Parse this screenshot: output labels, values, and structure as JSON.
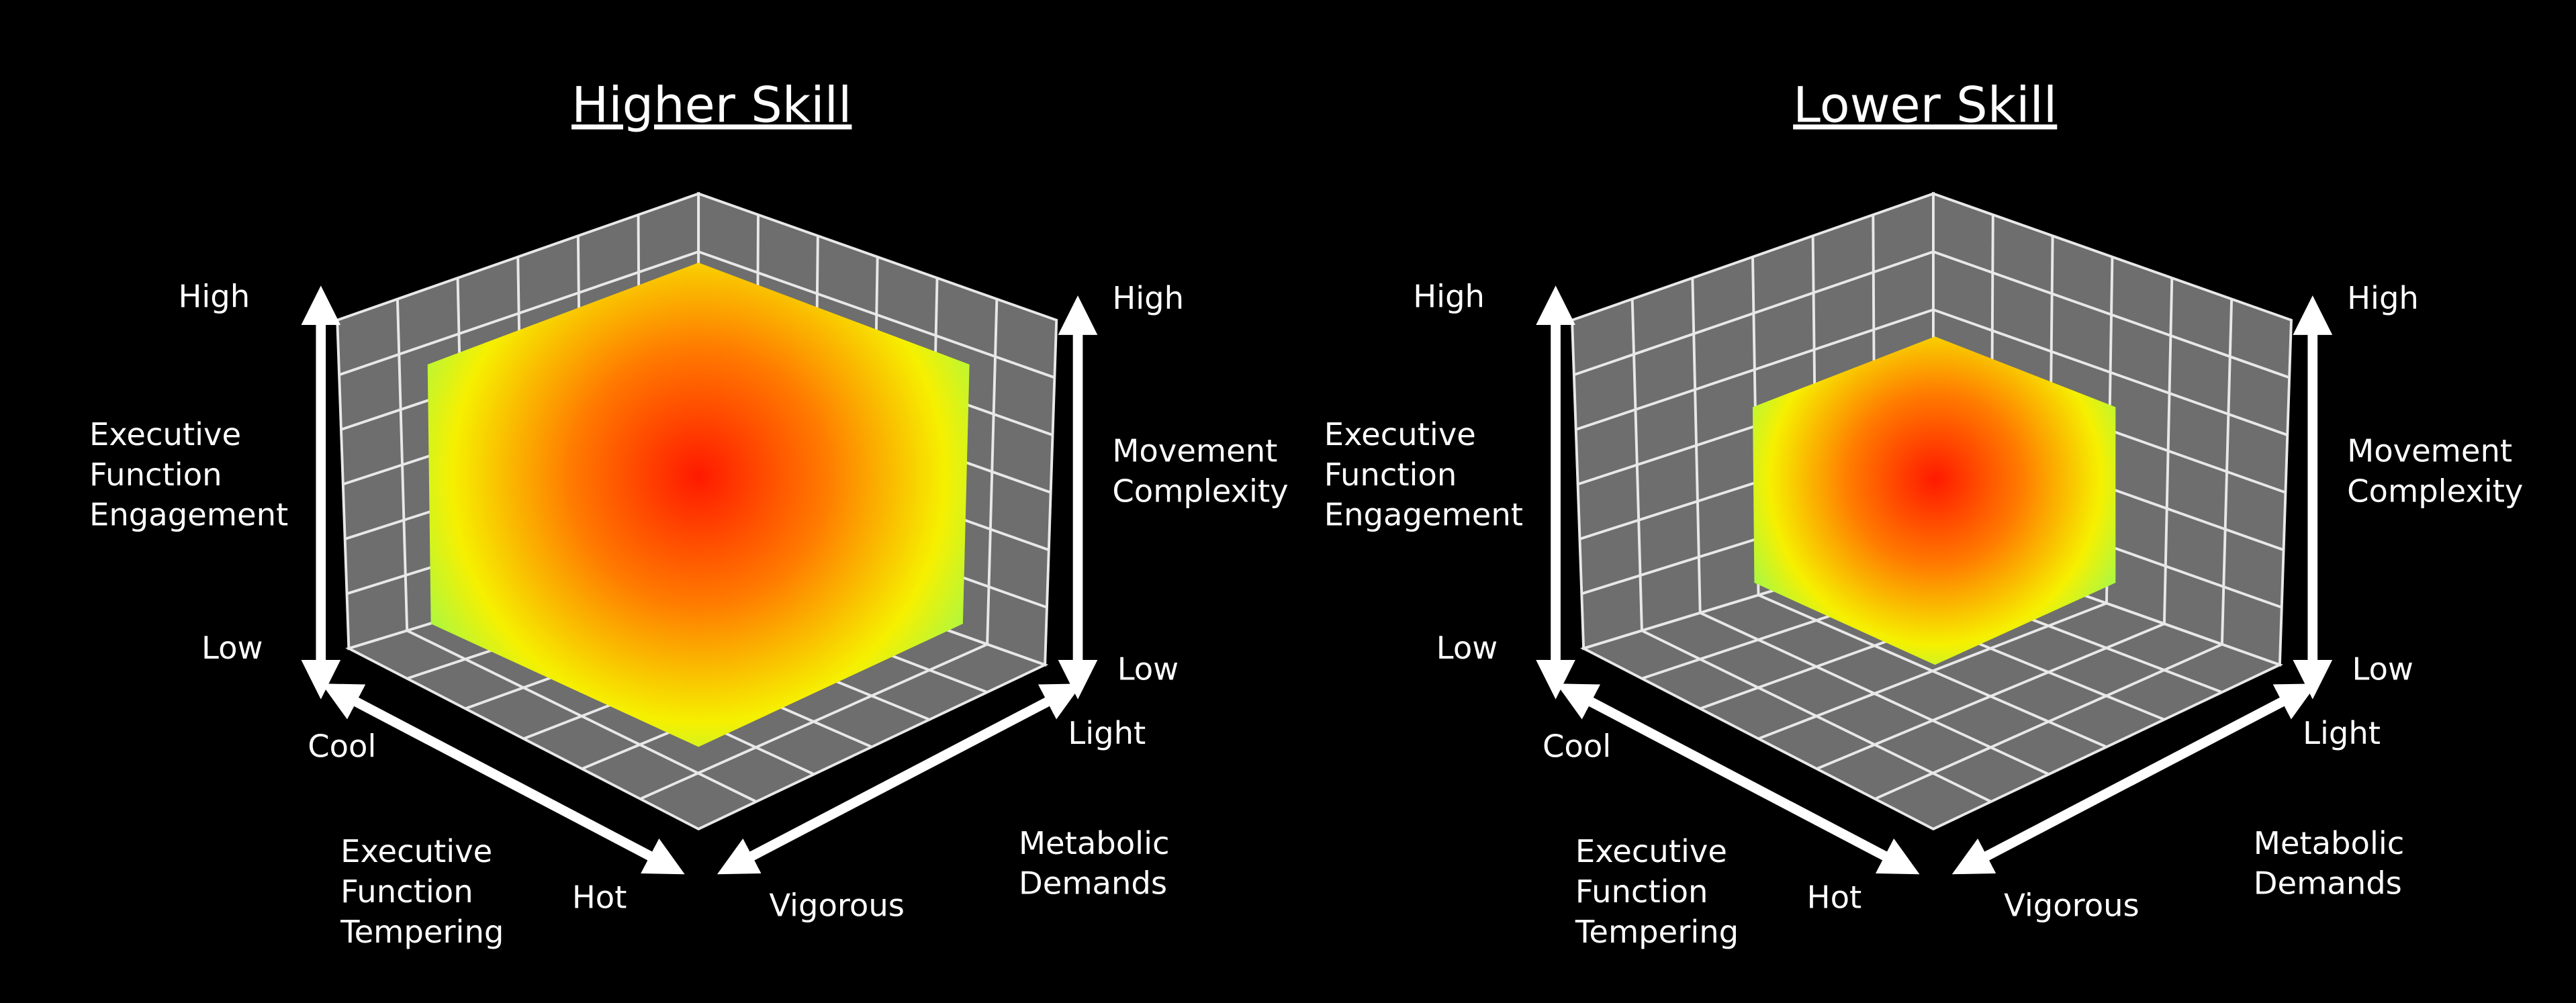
{
  "panels": [
    {
      "title": "Higher Skill",
      "engagement": {
        "high": "High",
        "label": [
          "Executive",
          "Function",
          "Engagement"
        ],
        "low": "Low"
      },
      "complexity": {
        "high": "High",
        "label": [
          "Movement",
          "Complexity"
        ],
        "low": "Low"
      },
      "tempering": {
        "cool": "Cool",
        "label": [
          "Executive",
          "Function",
          "Tempering"
        ],
        "hot": "Hot"
      },
      "metabolic": {
        "light": "Light",
        "label": [
          "Metabolic",
          "Demands"
        ],
        "vigorous": "Vigorous"
      }
    },
    {
      "title": "Lower Skill",
      "engagement": {
        "high": "High",
        "label": [
          "Executive",
          "Function",
          "Engagement"
        ],
        "low": "Low"
      },
      "complexity": {
        "high": "High",
        "label": [
          "Movement",
          "Complexity"
        ],
        "low": "Low"
      },
      "tempering": {
        "cool": "Cool",
        "label": [
          "Executive",
          "Function",
          "Tempering"
        ],
        "hot": "Hot"
      },
      "metabolic": {
        "light": "Light",
        "label": [
          "Metabolic",
          "Demands"
        ],
        "vigorous": "Vigorous"
      }
    }
  ]
}
